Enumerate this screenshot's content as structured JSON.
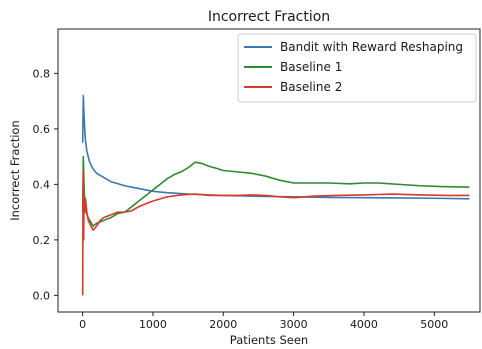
{
  "chart_data": {
    "type": "line",
    "title": "Incorrect Fraction",
    "xlabel": "Patients Seen",
    "ylabel": "Incorrect Fraction",
    "xlim": [
      -350,
      5650
    ],
    "ylim": [
      -0.06,
      0.96
    ],
    "xticks": [
      0,
      1000,
      2000,
      3000,
      4000,
      5000
    ],
    "xtick_labels": [
      "0",
      "1000",
      "2000",
      "3000",
      "4000",
      "5000"
    ],
    "yticks": [
      0.0,
      0.2,
      0.4,
      0.6,
      0.8
    ],
    "ytick_labels": [
      "0.0",
      "0.2",
      "0.4",
      "0.6",
      "0.8"
    ],
    "grid": false,
    "legend_position": "top-right",
    "series": [
      {
        "name": "Bandit with Reward Reshaping",
        "color": "#3a78b8",
        "x": [
          1,
          10,
          20,
          30,
          40,
          60,
          80,
          100,
          150,
          200,
          300,
          400,
          600,
          800,
          1000,
          1200,
          1500,
          2000,
          2500,
          3000,
          3500,
          4000,
          4500,
          5000,
          5500
        ],
        "y": [
          0.55,
          0.72,
          0.65,
          0.6,
          0.56,
          0.52,
          0.5,
          0.48,
          0.455,
          0.44,
          0.425,
          0.41,
          0.395,
          0.385,
          0.375,
          0.37,
          0.365,
          0.36,
          0.357,
          0.355,
          0.353,
          0.352,
          0.351,
          0.35,
          0.348
        ]
      },
      {
        "name": "Baseline 1",
        "color": "#2e8b2e",
        "x": [
          1,
          10,
          20,
          30,
          50,
          80,
          100,
          150,
          200,
          300,
          400,
          500,
          600,
          700,
          800,
          900,
          1000,
          1100,
          1200,
          1300,
          1400,
          1500,
          1600,
          1700,
          1800,
          1900,
          2000,
          2200,
          2400,
          2600,
          2800,
          3000,
          3200,
          3500,
          3800,
          4000,
          4200,
          4500,
          4800,
          5100,
          5500
        ],
        "y": [
          0.3,
          0.5,
          0.4,
          0.34,
          0.3,
          0.28,
          0.27,
          0.25,
          0.26,
          0.27,
          0.28,
          0.295,
          0.3,
          0.32,
          0.34,
          0.36,
          0.38,
          0.4,
          0.42,
          0.435,
          0.445,
          0.46,
          0.48,
          0.475,
          0.465,
          0.458,
          0.45,
          0.445,
          0.44,
          0.43,
          0.415,
          0.405,
          0.405,
          0.405,
          0.402,
          0.405,
          0.405,
          0.4,
          0.395,
          0.392,
          0.39
        ]
      },
      {
        "name": "Baseline 2",
        "color": "#d8392b",
        "x": [
          1,
          5,
          10,
          15,
          20,
          30,
          40,
          60,
          80,
          100,
          150,
          200,
          250,
          300,
          400,
          500,
          600,
          700,
          800,
          900,
          1000,
          1200,
          1400,
          1600,
          1800,
          2000,
          2200,
          2400,
          2600,
          2800,
          3000,
          3300,
          3600,
          4000,
          4400,
          4800,
          5200,
          5500
        ],
        "y": [
          0.0,
          0.32,
          0.45,
          0.2,
          0.34,
          0.3,
          0.35,
          0.3,
          0.27,
          0.26,
          0.235,
          0.25,
          0.27,
          0.28,
          0.29,
          0.3,
          0.3,
          0.305,
          0.32,
          0.33,
          0.34,
          0.355,
          0.362,
          0.365,
          0.36,
          0.36,
          0.36,
          0.362,
          0.36,
          0.355,
          0.352,
          0.358,
          0.36,
          0.362,
          0.365,
          0.362,
          0.36,
          0.36
        ]
      }
    ]
  }
}
